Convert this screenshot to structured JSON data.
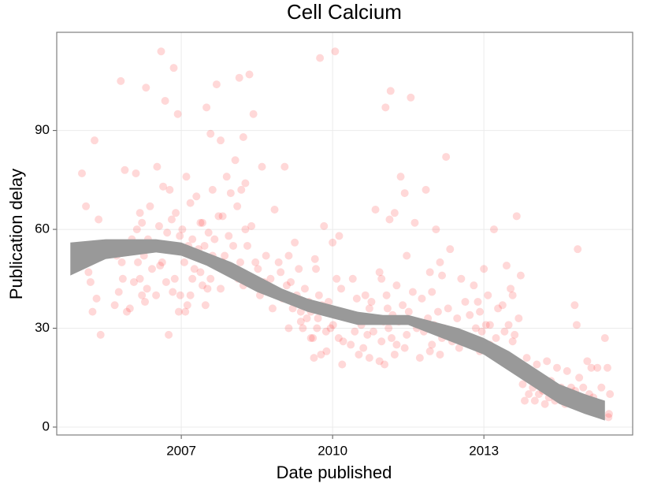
{
  "chart_data": {
    "type": "scatter",
    "title": "Cell Calcium",
    "x_label": "Date published",
    "y_label": "Publication delay",
    "xlim": [
      2004.53,
      2015.95
    ],
    "ylim": [
      -2.4,
      119.8
    ],
    "xticks": [
      2007,
      2010,
      2013
    ],
    "yticks": [
      0,
      30,
      60,
      90
    ],
    "grid": true,
    "series": [
      {
        "color": "#ff0000",
        "x": [
          2005.03,
          2005.11,
          2005.28,
          2005.36,
          2005.2,
          2005.32,
          2005.24,
          2005.4,
          2005.16,
          2005.3,
          2005.8,
          2005.88,
          2005.72,
          2005.84,
          2005.76,
          2005.92,
          2005.68,
          2005.82,
          2006.1,
          2006.18,
          2006.02,
          2006.14,
          2006.06,
          2006.22,
          2005.98,
          2006.12,
          2006.08,
          2006.3,
          2006.38,
          2006.22,
          2006.34,
          2006.26,
          2006.42,
          2006.18,
          2006.32,
          2006.28,
          2006.6,
          2006.68,
          2006.52,
          2006.64,
          2006.56,
          2006.72,
          2006.48,
          2006.62,
          2006.58,
          2006.7,
          2006.5,
          2006.85,
          2006.93,
          2006.77,
          2006.89,
          2006.81,
          2006.97,
          2006.73,
          2006.87,
          2006.83,
          2006.95,
          2006.75,
          2007.1,
          2007.18,
          2007.02,
          2007.14,
          2007.06,
          2007.22,
          2006.98,
          2007.12,
          2007.08,
          2007.3,
          2007.38,
          2007.22,
          2007.34,
          2007.26,
          2007.42,
          2007.18,
          2007.5,
          2007.58,
          2007.42,
          2007.54,
          2007.46,
          2007.62,
          2007.38,
          2007.52,
          2007.48,
          2007.7,
          2007.78,
          2007.62,
          2007.74,
          2007.66,
          2007.82,
          2007.58,
          2007.9,
          2007.98,
          2007.82,
          2007.94,
          2007.86,
          2008.02,
          2007.78,
          2008.15,
          2008.23,
          2008.07,
          2008.19,
          2008.11,
          2008.27,
          2008.03,
          2008.17,
          2008.13,
          2008.35,
          2008.43,
          2008.27,
          2008.39,
          2008.31,
          2008.47,
          2008.23,
          2008.6,
          2008.68,
          2008.52,
          2008.64,
          2008.56,
          2008.85,
          2008.93,
          2008.77,
          2008.89,
          2008.81,
          2009.05,
          2009.13,
          2008.97,
          2009.09,
          2009.01,
          2009.25,
          2009.33,
          2009.17,
          2009.29,
          2009.21,
          2009.37,
          2009.13,
          2009.45,
          2009.53,
          2009.37,
          2009.49,
          2009.41,
          2009.57,
          2009.65,
          2009.73,
          2009.57,
          2009.69,
          2009.61,
          2009.77,
          2009.75,
          2009.83,
          2009.67,
          2009.79,
          2009.71,
          2009.87,
          2009.63,
          2010.0,
          2010.08,
          2009.92,
          2010.04,
          2009.96,
          2010.12,
          2009.88,
          2010.05,
          2010.13,
          2010.17,
          2010.09,
          2010.01,
          2010.21,
          2010.19,
          2010.4,
          2010.48,
          2010.32,
          2010.44,
          2010.36,
          2010.52,
          2010.65,
          2010.73,
          2010.57,
          2010.69,
          2010.61,
          2010.85,
          2010.93,
          2010.77,
          2010.89,
          2010.81,
          2010.97,
          2010.73,
          2011.05,
          2011.13,
          2010.97,
          2011.09,
          2011.01,
          2011.17,
          2010.93,
          2011.15,
          2011.23,
          2011.07,
          2011.19,
          2011.11,
          2011.27,
          2011.03,
          2011.35,
          2011.43,
          2011.27,
          2011.39,
          2011.31,
          2011.47,
          2011.23,
          2011.55,
          2011.63,
          2011.47,
          2011.59,
          2011.51,
          2011.67,
          2011.43,
          2011.85,
          2011.93,
          2011.77,
          2011.89,
          2011.81,
          2011.97,
          2011.73,
          2012.05,
          2012.13,
          2011.97,
          2012.09,
          2012.01,
          2012.17,
          2011.93,
          2012.25,
          2012.33,
          2012.17,
          2012.29,
          2012.21,
          2012.37,
          2012.13,
          2012.55,
          2012.63,
          2012.47,
          2012.59,
          2012.51,
          2012.8,
          2012.88,
          2012.72,
          2012.84,
          2012.76,
          2012.92,
          2013.0,
          2013.08,
          2012.92,
          2013.04,
          2012.96,
          2013.12,
          2013.2,
          2013.28,
          2013.12,
          2013.24,
          2013.45,
          2013.53,
          2013.37,
          2013.49,
          2013.41,
          2013.57,
          2013.33,
          2013.65,
          2013.73,
          2013.57,
          2013.69,
          2013.61,
          2013.77,
          2013.85,
          2013.93,
          2013.77,
          2013.89,
          2013.81,
          2014.05,
          2014.13,
          2013.97,
          2014.09,
          2014.01,
          2014.25,
          2014.33,
          2014.17,
          2014.29,
          2014.21,
          2014.45,
          2014.53,
          2014.37,
          2014.49,
          2014.41,
          2014.65,
          2014.73,
          2014.57,
          2014.69,
          2014.61,
          2014.8,
          2014.84,
          2014.86,
          2014.89,
          2014.81,
          2014.97,
          2014.73,
          2015.05,
          2015.13,
          2014.97,
          2015.09,
          2015.01,
          2015.25,
          2015.33,
          2015.17,
          2015.29,
          2015.4,
          2015.45,
          2015.5,
          2015.48,
          2015.47
        ],
        "values": [
          77,
          67,
          87,
          63,
          44,
          39,
          35,
          28,
          47,
          52,
          105,
          78,
          52,
          45,
          41,
          35,
          37,
          50,
          77,
          65,
          57,
          50,
          44,
          40,
          36,
          60,
          55,
          103,
          67,
          62,
          57,
          52,
          48,
          45,
          42,
          38,
          114,
          99,
          79,
          73,
          61,
          59,
          55,
          50,
          49,
          44,
          40,
          109,
          95,
          72,
          65,
          63,
          58,
          54,
          45,
          41,
          35,
          28,
          76,
          68,
          60,
          55,
          50,
          45,
          40,
          37,
          35,
          70,
          62,
          57,
          54,
          48,
          43,
          40,
          97,
          89,
          62,
          59,
          55,
          52,
          47,
          42,
          37,
          104,
          87,
          72,
          64,
          57,
          50,
          45,
          76,
          71,
          64,
          58,
          52,
          48,
          42,
          106,
          88,
          81,
          72,
          67,
          60,
          55,
          50,
          45,
          107,
          95,
          74,
          61,
          55,
          50,
          43,
          79,
          52,
          48,
          44,
          40,
          66,
          50,
          45,
          40,
          36,
          79,
          52,
          47,
          43,
          39,
          56,
          48,
          44,
          40,
          36,
          32,
          30,
          42,
          38,
          35,
          33,
          30,
          27,
          51,
          40,
          35,
          30,
          27,
          22,
          112,
          61,
          48,
          37,
          33,
          29,
          21,
          56,
          45,
          38,
          34,
          30,
          27,
          23,
          114,
          58,
          42,
          35,
          31,
          26,
          19,
          45,
          39,
          33,
          29,
          25,
          22,
          40,
          36,
          31,
          28,
          24,
          66,
          47,
          38,
          33,
          29,
          26,
          21,
          97,
          63,
          45,
          36,
          32,
          27,
          20,
          102,
          65,
          40,
          34,
          30,
          25,
          19,
          76,
          71,
          43,
          37,
          32,
          28,
          22,
          100,
          62,
          52,
          41,
          35,
          30,
          24,
          72,
          47,
          39,
          33,
          29,
          25,
          21,
          60,
          50,
          41,
          35,
          31,
          27,
          23,
          82,
          54,
          46,
          36,
          30,
          26,
          22,
          45,
          38,
          33,
          28,
          24,
          43,
          38,
          34,
          30,
          26,
          23,
          48,
          40,
          35,
          31,
          29,
          25,
          60,
          36,
          31,
          27,
          49,
          42,
          37,
          31,
          29,
          26,
          22,
          64,
          46,
          40,
          33,
          28,
          16,
          21,
          17,
          13,
          10,
          8,
          19,
          15,
          12,
          10,
          8,
          20,
          14,
          11,
          9,
          7,
          18,
          12,
          10,
          9,
          8,
          17,
          12,
          10,
          8,
          7,
          37,
          31,
          54,
          15,
          11,
          9,
          8,
          20,
          18,
          12,
          10,
          8,
          18,
          12,
          9,
          7,
          27,
          18,
          10,
          4,
          3
        ]
      }
    ],
    "band": {
      "color": "#999999",
      "x": [
        2004.8,
        2005.5,
        2006.0,
        2006.5,
        2007.0,
        2007.5,
        2008.0,
        2008.5,
        2009.0,
        2009.5,
        2010.0,
        2010.5,
        2011.0,
        2011.5,
        2012.0,
        2012.5,
        2013.0,
        2013.5,
        2014.0,
        2014.5,
        2015.0,
        2015.4
      ],
      "lower": [
        46,
        51,
        52,
        53,
        52,
        49,
        45,
        41,
        38,
        35,
        33,
        31,
        31,
        31,
        28,
        25,
        22,
        17,
        12,
        7,
        4,
        2
      ],
      "upper": [
        56,
        57,
        57,
        57,
        56,
        53,
        50,
        46,
        42,
        39,
        37,
        35,
        34,
        34,
        32,
        30,
        27,
        23,
        18,
        13,
        10,
        8
      ]
    }
  }
}
